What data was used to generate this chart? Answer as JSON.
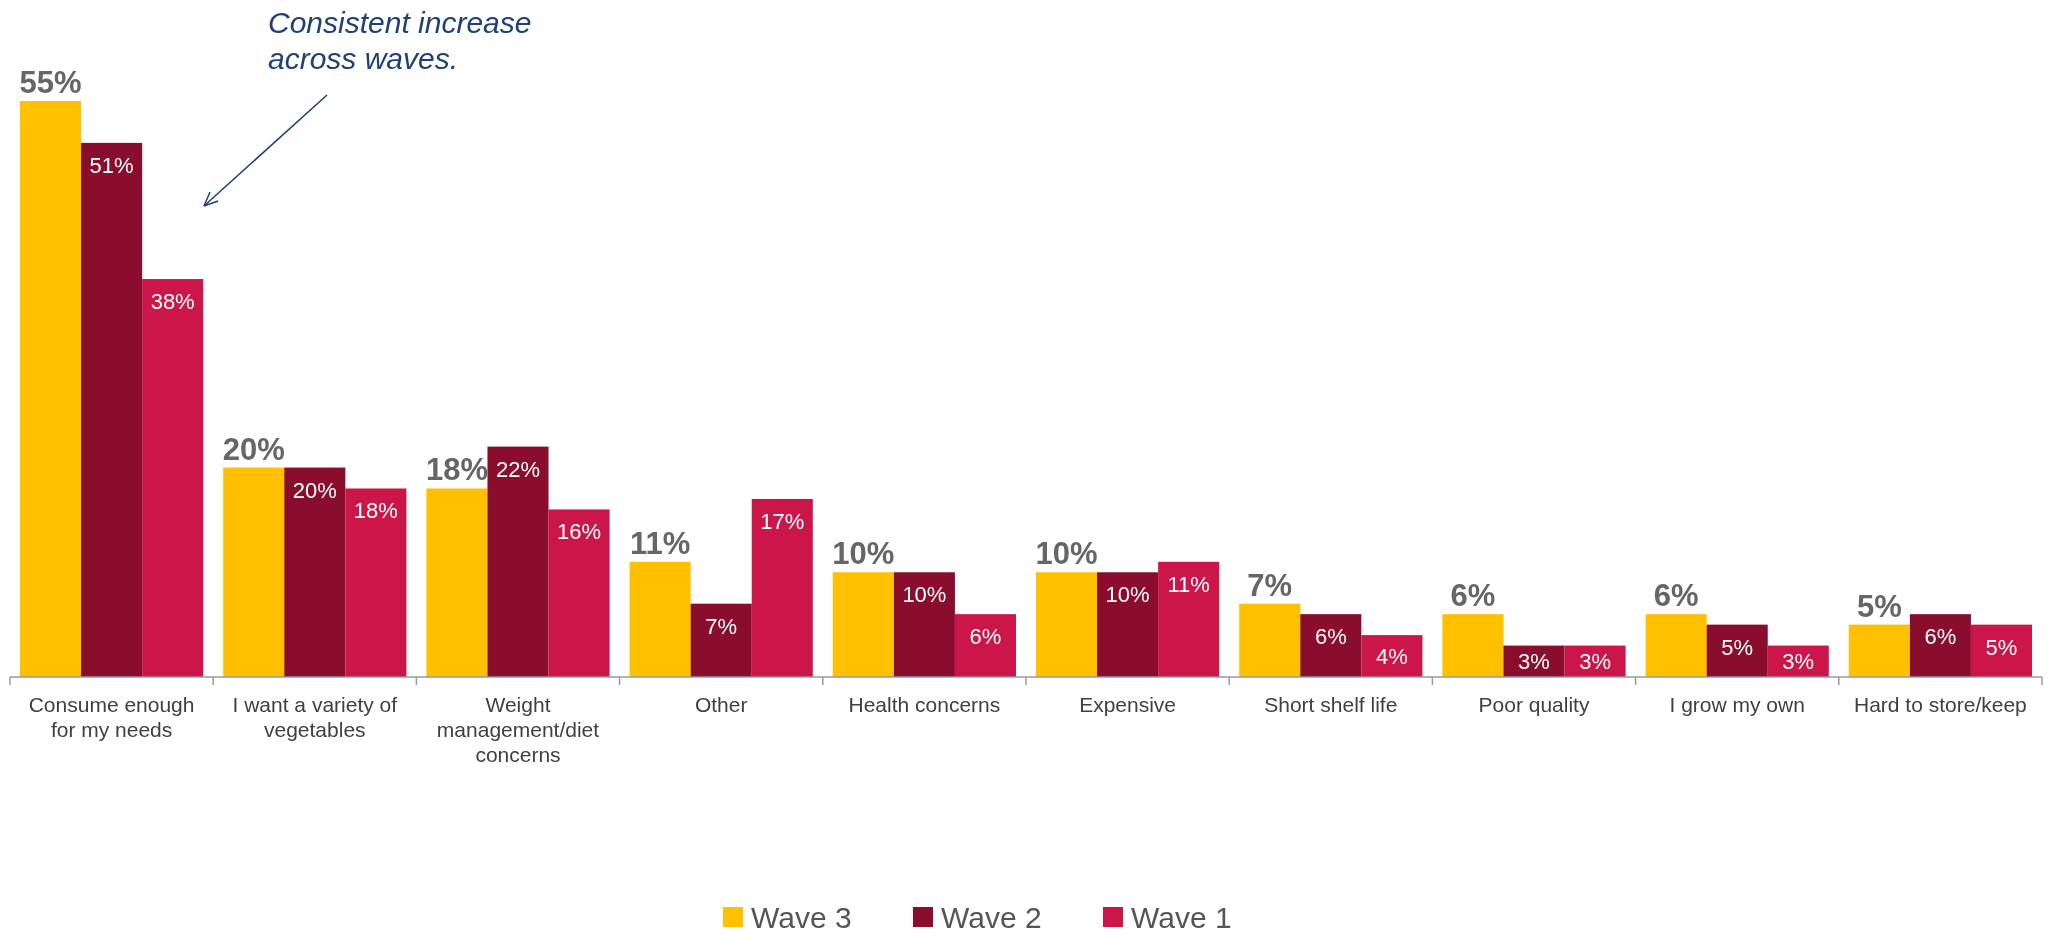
{
  "chart_data": {
    "type": "bar",
    "categories": [
      "Consume enough for my needs",
      "I want a variety of vegetables",
      "Weight management/diet concerns",
      "Other",
      "Health concerns",
      "Expensive",
      "Short shelf life",
      "Poor quality",
      "I grow my own",
      "Hard to store/keep"
    ],
    "series": [
      {
        "name": "Wave 3",
        "color": "#ffc000",
        "values": [
          55,
          20,
          18,
          11,
          10,
          10,
          7,
          6,
          6,
          5
        ],
        "value_labels": [
          "55%",
          "20%",
          "18%",
          "11%",
          "10%",
          "10%",
          "7%",
          "6%",
          "6%",
          "5%"
        ]
      },
      {
        "name": "Wave 2",
        "color": "#8b0d2e",
        "values": [
          51,
          20,
          22,
          7,
          10,
          10,
          6,
          3,
          5,
          6
        ],
        "value_labels": [
          "51%",
          "20%",
          "22%",
          "7%",
          "10%",
          "10%",
          "6%",
          "3%",
          "5%",
          "6%"
        ]
      },
      {
        "name": "Wave 1",
        "color": "#cc1549",
        "values": [
          38,
          18,
          16,
          17,
          6,
          11,
          4,
          3,
          3,
          5
        ],
        "value_labels": [
          "38%",
          "18%",
          "16%",
          "17%",
          "6%",
          "11%",
          "4%",
          "3%",
          "3%",
          "5%"
        ]
      }
    ],
    "annotations": [
      "Consistent increase across waves."
    ],
    "legend": "bottom"
  }
}
